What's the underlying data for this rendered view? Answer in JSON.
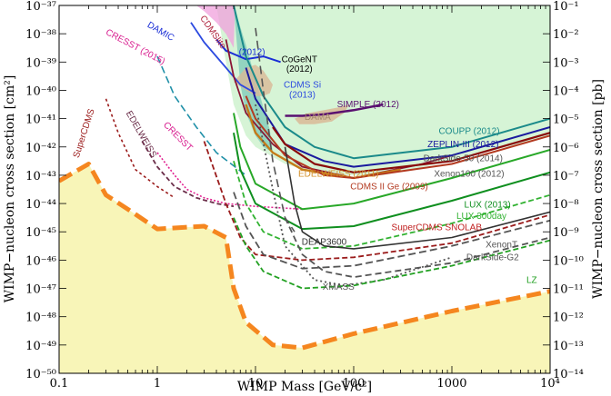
{
  "chart_data": {
    "type": "line",
    "title": "",
    "xlabel": "WIMP Mass [GeV/c²]",
    "ylabel_left": "WIMP−nucleon cross section [cm²]",
    "ylabel_right": "WIMP−nucleon cross section [pb]",
    "xlim": [
      0.1,
      10000
    ],
    "ylim_left_cm2": [
      1e-50,
      1e-37
    ],
    "ylim_right_pb": [
      1e-14,
      0.1
    ],
    "xscale": "log",
    "yscale": "log",
    "x_ticks": [
      {
        "value": 0.1,
        "label": "0.1"
      },
      {
        "value": 1,
        "label": "1"
      },
      {
        "value": 10,
        "label": "10"
      },
      {
        "value": 100,
        "label": "100"
      },
      {
        "value": 1000,
        "label": "1000"
      },
      {
        "value": 10000,
        "label": "10⁴"
      }
    ],
    "y_ticks_left": [
      {
        "exp": -37,
        "label": "10⁻³⁷"
      },
      {
        "exp": -38,
        "label": "10⁻³⁸"
      },
      {
        "exp": -39,
        "label": "10⁻³⁹"
      },
      {
        "exp": -40,
        "label": "10⁻⁴⁰"
      },
      {
        "exp": -41,
        "label": "10⁻⁴¹"
      },
      {
        "exp": -42,
        "label": "10⁻⁴²"
      },
      {
        "exp": -43,
        "label": "10⁻⁴³"
      },
      {
        "exp": -44,
        "label": "10⁻⁴⁴"
      },
      {
        "exp": -45,
        "label": "10⁻⁴⁵"
      },
      {
        "exp": -46,
        "label": "10⁻⁴⁶"
      },
      {
        "exp": -47,
        "label": "10⁻⁴⁷"
      },
      {
        "exp": -48,
        "label": "10⁻⁴⁸"
      },
      {
        "exp": -49,
        "label": "10⁻⁴⁹"
      },
      {
        "exp": -50,
        "label": "10⁻⁵⁰"
      }
    ],
    "y_ticks_right": [
      {
        "exp": -1,
        "label": "10⁻¹"
      },
      {
        "exp": -2,
        "label": "10⁻²"
      },
      {
        "exp": -3,
        "label": "10⁻³"
      },
      {
        "exp": -4,
        "label": "10⁻⁴"
      },
      {
        "exp": -5,
        "label": "10⁻⁵"
      },
      {
        "exp": -6,
        "label": "10⁻⁶"
      },
      {
        "exp": -7,
        "label": "10⁻⁷"
      },
      {
        "exp": -8,
        "label": "10⁻⁸"
      },
      {
        "exp": -9,
        "label": "10⁻⁹"
      },
      {
        "exp": -10,
        "label": "10⁻¹⁰"
      },
      {
        "exp": -11,
        "label": "10⁻¹¹"
      },
      {
        "exp": -12,
        "label": "10⁻¹²"
      },
      {
        "exp": -13,
        "label": "10⁻¹³"
      },
      {
        "exp": -14,
        "label": "10⁻¹⁴"
      }
    ],
    "regions": [
      {
        "name": "neutrino-floor",
        "color": "#f8f5b8",
        "opacity": 1,
        "x": [
          0.1,
          0.2,
          0.3,
          0.5,
          1,
          3,
          5,
          6,
          8,
          15,
          30,
          100,
          1000,
          10000
        ],
        "y": [
          -43.2,
          -42.6,
          -43.7,
          -44.2,
          -44.9,
          -44.8,
          -45.2,
          -47.0,
          -48.2,
          -49.0,
          -49.1,
          -48.6,
          -47.8,
          -47.1
        ]
      },
      {
        "name": "excluded-region",
        "color": "#c8f0c8",
        "opacity": 0.75,
        "x": [
          4,
          5,
          6,
          8,
          10,
          20,
          40,
          80,
          200,
          1000,
          10000,
          10000,
          4
        ],
        "y": [
          -37,
          -39,
          -40.5,
          -41.6,
          -42.0,
          -42.6,
          -42.9,
          -43.0,
          -43.0,
          -42.5,
          -41.6,
          -37,
          -37
        ]
      },
      {
        "name": "cresst-region",
        "color": "#f0a0dc",
        "opacity": 0.75,
        "x": [
          2.5,
          3,
          4,
          5,
          6,
          6.2,
          5,
          3.5,
          2.7,
          2.5
        ],
        "y": [
          -37,
          -37.2,
          -37.6,
          -38.0,
          -38.5,
          -37,
          -37,
          -37,
          -37,
          -37
        ]
      },
      {
        "name": "cdms-si-region",
        "color": "#7ccab8",
        "opacity": 0.75,
        "x": [
          6,
          7,
          8,
          10,
          12,
          15,
          14,
          12,
          10,
          8,
          6
        ],
        "y": [
          -37,
          -39.8,
          -40.8,
          -41.6,
          -42.0,
          -42.2,
          -41.4,
          -40.6,
          -39.6,
          -38.4,
          -37
        ]
      },
      {
        "name": "cogent-region",
        "color": "#d9b896",
        "opacity": 0.8,
        "x": [
          6,
          8,
          10,
          12,
          15,
          14,
          12,
          10,
          8,
          6
        ],
        "y": [
          -39.7,
          -39.2,
          -39.1,
          -39.3,
          -39.8,
          -40.1,
          -40.2,
          -40.2,
          -40.0,
          -39.7
        ]
      },
      {
        "name": "dama-region",
        "color": "#d9b896",
        "opacity": 0.85,
        "x": [
          25,
          35,
          50,
          70,
          90,
          80,
          60,
          40,
          28,
          25
        ],
        "y": [
          -41.0,
          -40.8,
          -40.7,
          -40.6,
          -40.5,
          -40.8,
          -41.1,
          -41.2,
          -41.2,
          -41.0
        ]
      }
    ],
    "series": [
      {
        "name": "SuperCDMS",
        "color": "#9b1c1c",
        "dash": "3,3",
        "width": 1.6,
        "x": [
          0.3,
          0.4,
          0.6,
          1,
          1.5
        ],
        "y": [
          -40.3,
          -41.5,
          -42.8,
          -43.4,
          -43.8
        ]
      },
      {
        "name": "EDELWEISS",
        "color": "#6b2e4a",
        "dash": "5,3",
        "width": 1.8,
        "x": [
          0.7,
          1,
          1.5,
          2.5,
          4,
          6
        ],
        "y": [
          -41.8,
          -42.7,
          -43.4,
          -43.8,
          -44.0,
          -44.1
        ]
      },
      {
        "name": "CRESST",
        "color": "#e0208f",
        "dash": "2,2",
        "width": 1.6,
        "x": [
          1,
          1.5,
          2,
          3,
          5,
          10,
          30
        ],
        "y": [
          -42.2,
          -43.0,
          -43.5,
          -43.8,
          -44.0,
          -44.1,
          -44.2
        ]
      },
      {
        "name": "SuperCDMS SNOLAB",
        "color": "#9b1c1c",
        "dash": "6,3",
        "width": 1.8,
        "x": [
          3,
          5,
          7,
          10,
          30,
          100,
          1000,
          10000
        ],
        "y": [
          -41.8,
          -44.0,
          -45.2,
          -45.8,
          -46.0,
          -45.9,
          -45.4,
          -44.4
        ]
      },
      {
        "name": "CDMSlite",
        "color": "#2090a8",
        "dash": "8,4",
        "width": 1.6,
        "x": [
          1,
          1.5,
          2.5,
          4,
          8
        ],
        "y": [
          -38.8,
          -40.2,
          -41.3,
          -42.2,
          -43.0
        ]
      },
      {
        "name": "DAMIC",
        "color": "#2c4ae0",
        "dash": "",
        "width": 1.8,
        "x": [
          2.2,
          3,
          5,
          7,
          10
        ],
        "y": [
          -37.6,
          -38.3,
          -39.2,
          -39.8,
          -40.1
        ]
      },
      {
        "name": "XENON10 (2012)",
        "color": "#1a2ed6",
        "dash": "",
        "width": 2,
        "x": [
          4,
          5,
          8,
          12,
          18
        ],
        "y": [
          -38.2,
          -38.6,
          -38.9,
          -38.8,
          -39.0
        ]
      },
      {
        "name": "CDMS Si",
        "color": "#8a1535",
        "dash": "",
        "width": 1.8,
        "x": [
          5,
          6,
          8,
          10,
          15,
          30,
          100,
          500,
          1000
        ],
        "y": [
          -38.2,
          -39.5,
          -40.8,
          -41.2,
          -41.9,
          -42.7,
          -43.1,
          -42.6,
          -42.3
        ]
      },
      {
        "name": "SIMPLE (2012)",
        "color": "#5a1070",
        "dash": "",
        "width": 2.5,
        "x": [
          20,
          30,
          50,
          100,
          200
        ],
        "y": [
          -40.9,
          -40.9,
          -40.85,
          -40.7,
          -40.5
        ]
      },
      {
        "name": "COUPP (2012)",
        "color": "#1a8a8a",
        "dash": "",
        "width": 2,
        "x": [
          6,
          8,
          12,
          20,
          40,
          100,
          1000,
          10000
        ],
        "y": [
          -37.0,
          -38.8,
          -40.2,
          -41.3,
          -42.0,
          -42.4,
          -42.0,
          -41.0
        ]
      },
      {
        "name": "ZEPLIN-III (2012)",
        "color": "#1a1a9e",
        "dash": "",
        "width": 2,
        "x": [
          8,
          10,
          20,
          50,
          100,
          1000,
          10000
        ],
        "y": [
          -39.2,
          -40.3,
          -41.9,
          -42.5,
          -42.7,
          -42.3,
          -41.3
        ]
      },
      {
        "name": "DarkSide-50 (2014)",
        "color": "#8a0b0b",
        "dash": "",
        "width": 2.2,
        "x": [
          15,
          20,
          40,
          100,
          1000,
          10000
        ],
        "y": [
          -41.3,
          -41.9,
          -42.6,
          -42.9,
          -42.5,
          -41.5
        ]
      },
      {
        "name": "EDELWEISS (2011)",
        "color": "#c47a18",
        "dash": "",
        "width": 2.4,
        "x": [
          8,
          10,
          15,
          30,
          100,
          300
        ],
        "y": [
          -40.5,
          -41.5,
          -42.2,
          -42.8,
          -43.1,
          -42.8
        ]
      },
      {
        "name": "CDMS II Ge (2009)",
        "color": "#b33a20",
        "dash": "",
        "width": 2,
        "x": [
          8,
          10,
          20,
          50,
          100,
          1000,
          10000
        ],
        "y": [
          -40.2,
          -41.0,
          -42.3,
          -43.0,
          -43.1,
          -42.6,
          -41.6
        ]
      },
      {
        "name": "Xenon100 (2012)",
        "color": "#28a828",
        "dash": "",
        "width": 2,
        "x": [
          6,
          7,
          10,
          30,
          100,
          1000,
          10000
        ],
        "y": [
          -40.8,
          -42.0,
          -43.3,
          -44.2,
          -44.0,
          -43.1,
          -42.1
        ]
      },
      {
        "name": "LUX (2013)",
        "color": "#0f8f1f",
        "dash": "",
        "width": 2,
        "x": [
          6,
          7,
          10,
          30,
          100,
          1000,
          10000
        ],
        "y": [
          -41.5,
          -42.8,
          -44.0,
          -44.9,
          -44.8,
          -43.9,
          -42.9
        ]
      },
      {
        "name": "LUX 300day",
        "color": "#32b232",
        "dash": "6,3",
        "width": 1.8,
        "x": [
          6,
          8,
          12,
          30,
          100,
          1000,
          10000
        ],
        "y": [
          -42.5,
          -44.0,
          -45.0,
          -45.6,
          -45.5,
          -44.7,
          -43.7
        ]
      },
      {
        "name": "DEAP3600",
        "color": "#333333",
        "dash": "",
        "width": 1.6,
        "x": [
          20,
          25,
          30,
          50,
          100,
          1000,
          10000
        ],
        "y": [
          -42.0,
          -44.0,
          -45.0,
          -45.5,
          -45.6,
          -45.2,
          -44.3
        ]
      },
      {
        "name": "XenonT",
        "color": "#555555",
        "dash": "8,4",
        "width": 1.8,
        "x": [
          6,
          8,
          12,
          30,
          100,
          1000,
          10000
        ],
        "y": [
          -43.6,
          -44.8,
          -45.8,
          -46.3,
          -46.2,
          -45.5,
          -44.6
        ]
      },
      {
        "name": "DarkSide-G2",
        "color": "#555555",
        "dash": "7,4",
        "width": 1.8,
        "x": [
          20,
          30,
          50,
          100,
          1000,
          10000
        ],
        "y": [
          -44.5,
          -45.8,
          -46.4,
          -46.6,
          -46.1,
          -45.2
        ]
      },
      {
        "name": "XMASS",
        "color": "#555555",
        "dash": "2,3",
        "width": 1.8,
        "x": [
          10,
          15,
          20,
          40,
          80,
          200,
          1000
        ],
        "y": [
          -40.5,
          -43.5,
          -45.5,
          -46.7,
          -46.9,
          -46.7,
          -45.9
        ]
      },
      {
        "name": "LZ",
        "color": "#22a022",
        "dash": "6,3",
        "width": 1.8,
        "x": [
          6,
          8,
          12,
          30,
          100,
          1000,
          10000
        ],
        "y": [
          -44.5,
          -45.5,
          -46.4,
          -47.0,
          -46.9,
          -46.2,
          -45.3
        ]
      },
      {
        "name": "dashed-boundary",
        "color": "#555555",
        "dash": "9,5",
        "width": 1.6,
        "x": [
          10,
          12,
          15,
          20,
          25
        ],
        "y": [
          -37.8,
          -40.0,
          -42.5,
          -44.5,
          -45.0
        ]
      },
      {
        "name": "neutrino-floor",
        "color": "#f5861f",
        "dash": "16,7",
        "width": 5,
        "x": [
          0.1,
          0.2,
          0.3,
          0.5,
          1,
          3,
          5,
          6,
          8,
          15,
          30,
          100,
          1000,
          10000
        ],
        "y": [
          -43.2,
          -42.6,
          -43.7,
          -44.2,
          -44.9,
          -44.8,
          -45.2,
          -47.0,
          -48.2,
          -49.0,
          -49.1,
          -48.6,
          -47.8,
          -47.1
        ]
      }
    ],
    "annotations": [
      {
        "text": "CRESST (2015)",
        "color": "#d81b8e",
        "x": 0.58,
        "y": -38.55,
        "rotate": 28
      },
      {
        "text": "DAMIC",
        "color": "#1a2ed6",
        "x": 1.05,
        "y": -38.0,
        "rotate": 30
      },
      {
        "text": "CDMSlite",
        "color": "#b0253f",
        "x": 3.5,
        "y": -38.0,
        "rotate": 55
      },
      {
        "text": "(2012)",
        "color": "#1a2ed6",
        "x": 9.2,
        "y": -38.75,
        "rotate": 0
      },
      {
        "text": "CoGeNT",
        "color": "#000000",
        "x": 28,
        "y": -39.0,
        "rotate": 0
      },
      {
        "text": "(2012)",
        "color": "#000000",
        "x": 28,
        "y": -39.35,
        "rotate": 0
      },
      {
        "text": "CDMS Si",
        "color": "#2c4ae0",
        "x": 30,
        "y": -39.9,
        "rotate": 0
      },
      {
        "text": "(2013)",
        "color": "#2c4ae0",
        "x": 30,
        "y": -40.25,
        "rotate": 0
      },
      {
        "text": "SuperCDMS",
        "color": "#9b1c1c",
        "x": 0.19,
        "y": -41.55,
        "rotate": -72
      },
      {
        "text": "EDELWEISS",
        "color": "#6b2e4a",
        "x": 0.65,
        "y": -41.6,
        "rotate": 60
      },
      {
        "text": "CRESST",
        "color": "#d81b8e",
        "x": 1.55,
        "y": -41.7,
        "rotate": 45
      },
      {
        "text": "DAMA",
        "color": "#a5896b",
        "x": 43,
        "y": -41.05,
        "rotate": 0
      },
      {
        "text": "SIMPLE (2012)",
        "color": "#5a1070",
        "x": 140,
        "y": -40.6,
        "rotate": 0
      },
      {
        "text": "COUPP (2012)",
        "color": "#1a8a8a",
        "x": 1500,
        "y": -41.55,
        "rotate": 0
      },
      {
        "text": "ZEPLIN-III (2012)",
        "color": "#1a1a9e",
        "x": 1300,
        "y": -42.0,
        "rotate": 0
      },
      {
        "text": "DarkSide-50 (2014)",
        "color": "#555555",
        "x": 1300,
        "y": -42.5,
        "rotate": 0
      },
      {
        "text": "EDELWEISS (2011)",
        "color": "#d4902a",
        "x": 70,
        "y": -43.05,
        "rotate": 0
      },
      {
        "text": "Xenon100 (2012)",
        "color": "#555555",
        "x": 1500,
        "y": -43.05,
        "rotate": 0
      },
      {
        "text": "CDMS II Ge (2009)",
        "color": "#b33a20",
        "x": 230,
        "y": -43.5,
        "rotate": 0
      },
      {
        "text": "LUX (2013)",
        "color": "#0f8f1f",
        "x": 2300,
        "y": -44.15,
        "rotate": 0
      },
      {
        "text": "LUX 300day",
        "color": "#32b232",
        "x": 2000,
        "y": -44.55,
        "rotate": 0
      },
      {
        "text": "SuperCDMS SNOLAB",
        "color": "#c02020",
        "x": 700,
        "y": -44.95,
        "rotate": 0
      },
      {
        "text": "DEAP3600",
        "color": "#333333",
        "x": 50,
        "y": -45.45,
        "rotate": 0
      },
      {
        "text": "XenonT",
        "color": "#555555",
        "x": 3200,
        "y": -45.55,
        "rotate": 0
      },
      {
        "text": "DarkSide-G2",
        "color": "#555555",
        "x": 2600,
        "y": -46.0,
        "rotate": 0
      },
      {
        "text": "XMASS",
        "color": "#555555",
        "x": 70,
        "y": -47.05,
        "rotate": 0
      },
      {
        "text": "LZ",
        "color": "#22a022",
        "x": 6500,
        "y": -46.8,
        "rotate": 0
      }
    ]
  }
}
